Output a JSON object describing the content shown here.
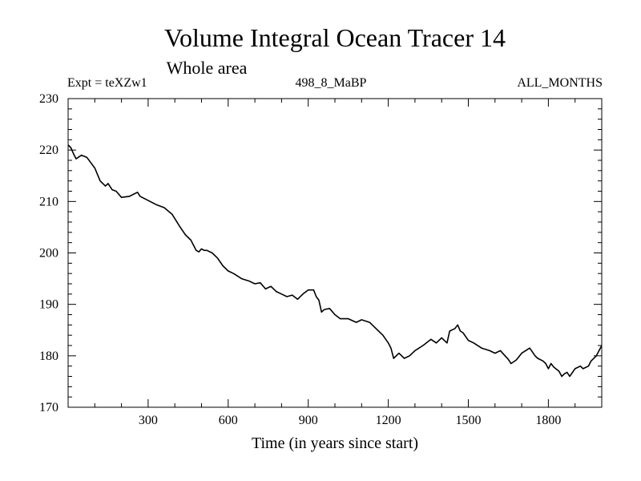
{
  "chart_data": {
    "type": "line",
    "title": "Volume Integral Ocean Tracer 14",
    "subtitle": "Whole area",
    "experiment_label": "Expt = teXZw1",
    "center_label": "498_8_MaBP",
    "right_label": "ALL_MONTHS",
    "xlabel": "Time (in years since start)",
    "ylabel": "",
    "xlim": [
      0,
      2000
    ],
    "ylim": [
      170,
      230
    ],
    "xticks": [
      300,
      600,
      900,
      1200,
      1500,
      1800
    ],
    "xtick_labels": [
      "300",
      "600",
      "900",
      "1200",
      "1500",
      "1800"
    ],
    "yticks": [
      170,
      180,
      190,
      200,
      210,
      220,
      230
    ],
    "ytick_labels": [
      "170",
      "180",
      "190",
      "200",
      "210",
      "220",
      "230"
    ],
    "series": [
      {
        "name": "Ocean Tracer 14",
        "color": "#000000",
        "x": [
          0,
          10,
          20,
          30,
          50,
          70,
          100,
          120,
          140,
          150,
          165,
          180,
          200,
          230,
          260,
          270,
          300,
          330,
          360,
          390,
          420,
          440,
          460,
          480,
          490,
          500,
          510,
          520,
          540,
          560,
          580,
          600,
          620,
          650,
          680,
          700,
          720,
          740,
          760,
          780,
          800,
          820,
          840,
          860,
          880,
          900,
          920,
          930,
          940,
          950,
          960,
          980,
          1000,
          1020,
          1050,
          1080,
          1100,
          1130,
          1160,
          1180,
          1200,
          1210,
          1220,
          1240,
          1260,
          1280,
          1300,
          1330,
          1360,
          1380,
          1400,
          1420,
          1430,
          1450,
          1460,
          1470,
          1480,
          1500,
          1520,
          1550,
          1580,
          1600,
          1620,
          1650,
          1660,
          1680,
          1700,
          1730,
          1750,
          1760,
          1780,
          1790,
          1800,
          1810,
          1820,
          1840,
          1850,
          1860,
          1870,
          1880,
          1900,
          1920,
          1930,
          1950,
          1960,
          1980,
          2000
        ],
        "y": [
          221.0,
          220.5,
          219.3,
          218.3,
          219.0,
          218.6,
          216.5,
          214.0,
          213.0,
          213.5,
          212.3,
          212.0,
          210.8,
          211.0,
          211.8,
          211.0,
          210.2,
          209.4,
          208.8,
          207.5,
          205.0,
          203.5,
          202.5,
          200.5,
          200.2,
          200.8,
          200.5,
          200.5,
          200.0,
          199.0,
          197.5,
          196.5,
          196.0,
          195.0,
          194.5,
          194.0,
          194.2,
          193.0,
          193.5,
          192.5,
          192.0,
          191.5,
          191.8,
          191.0,
          192.0,
          192.8,
          192.8,
          191.5,
          190.8,
          188.5,
          189.0,
          189.2,
          188.0,
          187.2,
          187.2,
          186.5,
          187.0,
          186.5,
          185.0,
          184.0,
          182.5,
          181.5,
          179.5,
          180.5,
          179.5,
          180.0,
          181.0,
          182.0,
          183.2,
          182.5,
          183.5,
          182.5,
          184.8,
          185.3,
          186.0,
          184.8,
          184.5,
          183.0,
          182.5,
          181.5,
          181.0,
          180.5,
          181.0,
          179.3,
          178.5,
          179.2,
          180.5,
          181.5,
          180.0,
          179.5,
          179.0,
          178.5,
          177.5,
          178.5,
          177.8,
          177.0,
          176.0,
          176.5,
          176.8,
          176.0,
          177.5,
          178.0,
          177.5,
          178.0,
          179.0,
          180.0,
          182.0
        ]
      }
    ]
  }
}
